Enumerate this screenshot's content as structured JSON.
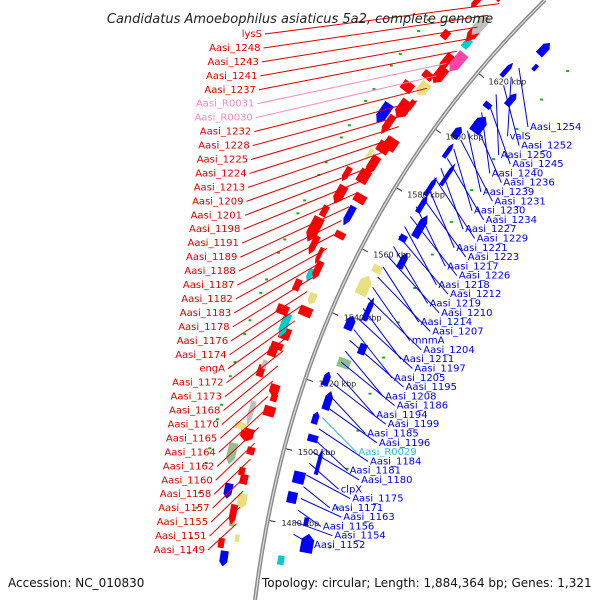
{
  "title": "Candidatus Amoebophilus asiaticus 5a2, complete genome",
  "accession": "Accession: NC_010830",
  "topology": "Topology: circular; Length: 1,884,364 bp; Genes: 1,321",
  "colors": {
    "left": "#dd0000",
    "right": "#0000dd",
    "rna": "#ff88bb",
    "rna_right": "#33bbdd",
    "backbone": "#888888"
  },
  "ticks": [
    {
      "label": "1480 kbp",
      "pos": 1480
    },
    {
      "label": "1500 kbp",
      "pos": 1500
    },
    {
      "label": "1520 kbp",
      "pos": 1520
    },
    {
      "label": "1540 kbp",
      "pos": 1540
    },
    {
      "label": "1560 kbp",
      "pos": 1560
    },
    {
      "label": "1580 kbp",
      "pos": 1580
    },
    {
      "label": "1600 kbp",
      "pos": 1600
    },
    {
      "label": "1620 kbp",
      "pos": 1620
    }
  ],
  "left_labels": [
    {
      "text": "lysS",
      "color": "red"
    },
    {
      "text": "Aasi_1248",
      "color": "red"
    },
    {
      "text": "Aasi_1243",
      "color": "red"
    },
    {
      "text": "Aasi_1241",
      "color": "red"
    },
    {
      "text": "Aasi_1237",
      "color": "red"
    },
    {
      "text": "Aasi_R0031",
      "color": "pink"
    },
    {
      "text": "Aasi_R0030",
      "color": "pink"
    },
    {
      "text": "Aasi_1232",
      "color": "red"
    },
    {
      "text": "Aasi_1228",
      "color": "red"
    },
    {
      "text": "Aasi_1225",
      "color": "red"
    },
    {
      "text": "Aasi_1224",
      "color": "red"
    },
    {
      "text": "Aasi_1213",
      "color": "red"
    },
    {
      "text": "Aasi_1209",
      "color": "red"
    },
    {
      "text": "Aasi_1201",
      "color": "red"
    },
    {
      "text": "Aasi_1198",
      "color": "red"
    },
    {
      "text": "Aasi_1191",
      "color": "red"
    },
    {
      "text": "Aasi_1189",
      "color": "red"
    },
    {
      "text": "Aasi_1188",
      "color": "red"
    },
    {
      "text": "Aasi_1187",
      "color": "red"
    },
    {
      "text": "Aasi_1182",
      "color": "red"
    },
    {
      "text": "Aasi_1183",
      "color": "red"
    },
    {
      "text": "Aasi_1178",
      "color": "red"
    },
    {
      "text": "Aasi_1176",
      "color": "red"
    },
    {
      "text": "Aasi_1174",
      "color": "red"
    },
    {
      "text": "engA",
      "color": "red"
    },
    {
      "text": "Aasi_1172",
      "color": "red"
    },
    {
      "text": "Aasi_1173",
      "color": "red"
    },
    {
      "text": "Aasi_1168",
      "color": "red"
    },
    {
      "text": "Aasi_1170",
      "color": "red"
    },
    {
      "text": "Aasi_1165",
      "color": "red"
    },
    {
      "text": "Aasi_1164",
      "color": "red"
    },
    {
      "text": "Aasi_1162",
      "color": "red"
    },
    {
      "text": "Aasi_1160",
      "color": "red"
    },
    {
      "text": "Aasi_1158",
      "color": "red"
    },
    {
      "text": "Aasi_1157",
      "color": "red"
    },
    {
      "text": "Aasi_1155",
      "color": "red"
    },
    {
      "text": "Aasi_1151",
      "color": "red"
    },
    {
      "text": "Aasi_1149",
      "color": "red"
    }
  ],
  "right_labels": [
    {
      "text": "Aasi_1254",
      "color": "blue"
    },
    {
      "text": "valS",
      "color": "blue"
    },
    {
      "text": "Aasi_1252",
      "color": "blue"
    },
    {
      "text": "Aasi_1250",
      "color": "blue"
    },
    {
      "text": "Aasi_1245",
      "color": "blue"
    },
    {
      "text": "Aasi_1240",
      "color": "blue"
    },
    {
      "text": "Aasi_1236",
      "color": "blue"
    },
    {
      "text": "Aasi_1239",
      "color": "blue"
    },
    {
      "text": "Aasi_1231",
      "color": "blue"
    },
    {
      "text": "Aasi_1230",
      "color": "blue"
    },
    {
      "text": "Aasi_1234",
      "color": "blue"
    },
    {
      "text": "Aasi_1227",
      "color": "blue"
    },
    {
      "text": "Aasi_1229",
      "color": "blue"
    },
    {
      "text": "Aasi_1221",
      "color": "blue"
    },
    {
      "text": "Aasi_1223",
      "color": "blue"
    },
    {
      "text": "Aasi_1217",
      "color": "blue"
    },
    {
      "text": "Aasi_1226",
      "color": "blue"
    },
    {
      "text": "Aasi_1218",
      "color": "blue"
    },
    {
      "text": "Aasi_1212",
      "color": "blue"
    },
    {
      "text": "Aasi_1219",
      "color": "blue"
    },
    {
      "text": "Aasi_1210",
      "color": "blue"
    },
    {
      "text": "Aasi_1214",
      "color": "blue"
    },
    {
      "text": "Aasi_1207",
      "color": "blue"
    },
    {
      "text": "mnmA",
      "color": "blue"
    },
    {
      "text": "Aasi_1204",
      "color": "blue"
    },
    {
      "text": "Aasi_1211",
      "color": "blue"
    },
    {
      "text": "Aasi_1197",
      "color": "blue"
    },
    {
      "text": "Aasi_1205",
      "color": "blue"
    },
    {
      "text": "Aasi_1195",
      "color": "blue"
    },
    {
      "text": "Aasi_1208",
      "color": "blue"
    },
    {
      "text": "Aasi_1186",
      "color": "blue"
    },
    {
      "text": "Aasi_1194",
      "color": "blue"
    },
    {
      "text": "Aasi_1199",
      "color": "blue"
    },
    {
      "text": "Aasi_1185",
      "color": "blue"
    },
    {
      "text": "Aasi_1196",
      "color": "blue"
    },
    {
      "text": "Aasi_R0029",
      "color": "cyan"
    },
    {
      "text": "Aasi_1184",
      "color": "blue"
    },
    {
      "text": "Aasi_1181",
      "color": "blue"
    },
    {
      "text": "Aasi_1180",
      "color": "blue"
    },
    {
      "text": "clpX",
      "color": "blue"
    },
    {
      "text": "Aasi_1175",
      "color": "blue"
    },
    {
      "text": "Aasi_1171",
      "color": "blue"
    },
    {
      "text": "Aasi_1163",
      "color": "blue"
    },
    {
      "text": "Aasi_1156",
      "color": "blue"
    },
    {
      "text": "Aasi_1154",
      "color": "blue"
    },
    {
      "text": "Aasi_1152",
      "color": "blue"
    }
  ]
}
